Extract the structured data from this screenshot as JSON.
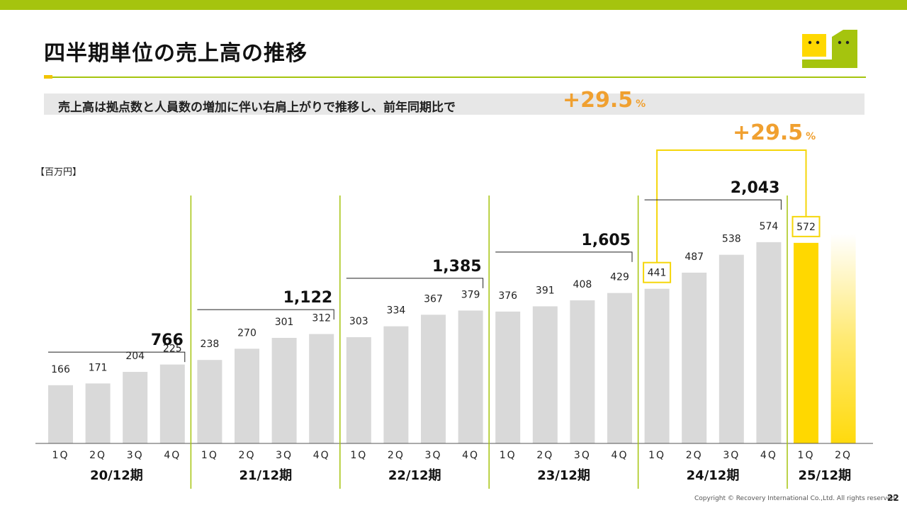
{
  "title": "四半期単位の売上高の推移",
  "banner": {
    "text": "売上高は拠点数と人員数の増加に伴い右肩上がりで推移し、前年同期比で",
    "pct": "+29.5",
    "pct_unit": "%"
  },
  "growth_callout": {
    "pct": "+29.5",
    "unit": "%"
  },
  "unit_label": "【百万円】",
  "footer": "Copyright © Recovery International Co.,Ltd. All rights reserved.",
  "page_number": "22",
  "colors": {
    "accent_green": "#a5c40e",
    "bar_gray": "#d9d9d9",
    "bar_yellow": "#ffd800",
    "highlight_yellow": "#f5d60a",
    "orange_text": "#f0a030"
  },
  "chart_data": {
    "type": "bar",
    "title": "",
    "xlabel": "",
    "ylabel": "",
    "unit": "百万円",
    "ylim": [
      0,
      640
    ],
    "quarters": [
      "1Q",
      "2Q",
      "3Q",
      "4Q",
      "1Q",
      "2Q",
      "3Q",
      "4Q",
      "1Q",
      "2Q",
      "3Q",
      "4Q",
      "1Q",
      "2Q",
      "3Q",
      "4Q",
      "1Q",
      "2Q",
      "3Q",
      "4Q",
      "1Q",
      "2Q"
    ],
    "quarter_display": [
      "1Q",
      "2Q",
      "3Q",
      "4Q",
      "1Q",
      "2Q",
      "3Q",
      "4Q",
      "1Q",
      "2Q",
      "3Q",
      "4Q",
      "1Q",
      "2Q",
      "3Q",
      "4Q",
      "1Q",
      "2Q",
      "3Q",
      "4Q",
      "1Q",
      "2Q"
    ],
    "values": [
      166,
      171,
      204,
      225,
      238,
      270,
      301,
      312,
      303,
      334,
      367,
      379,
      376,
      391,
      408,
      429,
      441,
      487,
      538,
      574,
      572,
      null
    ],
    "value_labels": [
      "166",
      "171",
      "204",
      "225",
      "238",
      "270",
      "301",
      "312",
      "303",
      "334",
      "367",
      "379",
      "376",
      "391",
      "408",
      "429",
      "441",
      "487",
      "538",
      "574",
      "572",
      ""
    ],
    "fiscal_years": [
      {
        "label": "20/12期",
        "total": 766,
        "total_label": "766"
      },
      {
        "label": "21/12期",
        "total": 1122,
        "total_label": "1,122"
      },
      {
        "label": "22/12期",
        "total": 1385,
        "total_label": "1,385"
      },
      {
        "label": "23/12期",
        "total": 1605,
        "total_label": "1,605"
      },
      {
        "label": "24/12期",
        "total": 2043,
        "total_label": "2,043"
      },
      {
        "label": "25/12期",
        "total": null,
        "total_label": ""
      }
    ],
    "highlighted": [
      16,
      20
    ],
    "grid": false
  }
}
